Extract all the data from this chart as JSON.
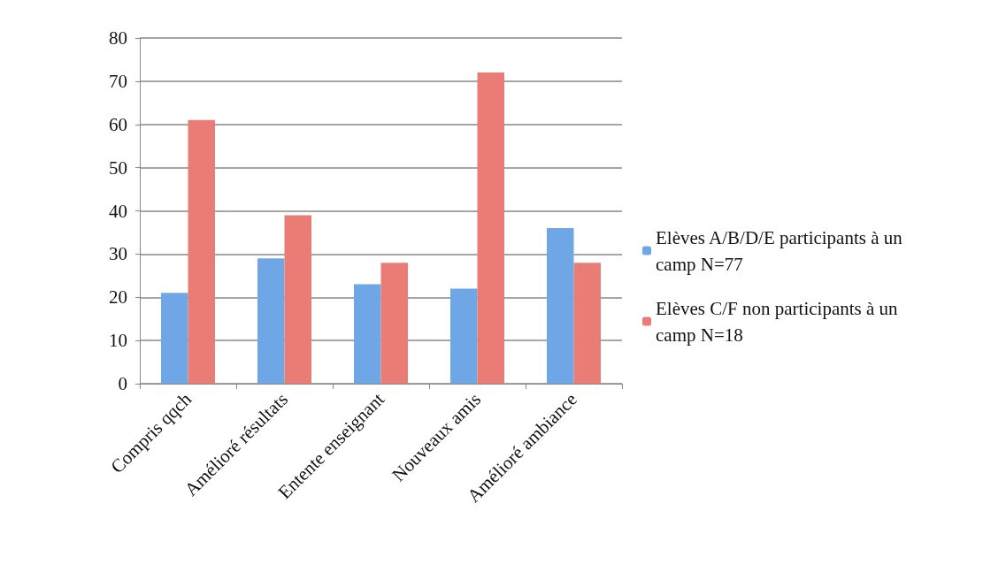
{
  "chart_data": {
    "type": "bar",
    "categories": [
      "Compris qqch",
      "Amélioré résultats",
      "Entente enseignant",
      "Nouveaux amis",
      "Amélioré ambiance"
    ],
    "series": [
      {
        "name": "Elèves A/B/D/E participants à un camp N=77",
        "color": "#6fa6e6",
        "values": [
          21,
          29,
          23,
          22,
          36
        ]
      },
      {
        "name": "Elèves C/F non participants à un camp N=18",
        "color": "#ea7c76",
        "values": [
          61,
          39,
          28,
          72,
          28
        ]
      }
    ],
    "ylim": [
      0,
      80
    ],
    "yticks": [
      0,
      10,
      20,
      30,
      40,
      50,
      60,
      70,
      80
    ],
    "grid": "y",
    "legend": "right"
  }
}
